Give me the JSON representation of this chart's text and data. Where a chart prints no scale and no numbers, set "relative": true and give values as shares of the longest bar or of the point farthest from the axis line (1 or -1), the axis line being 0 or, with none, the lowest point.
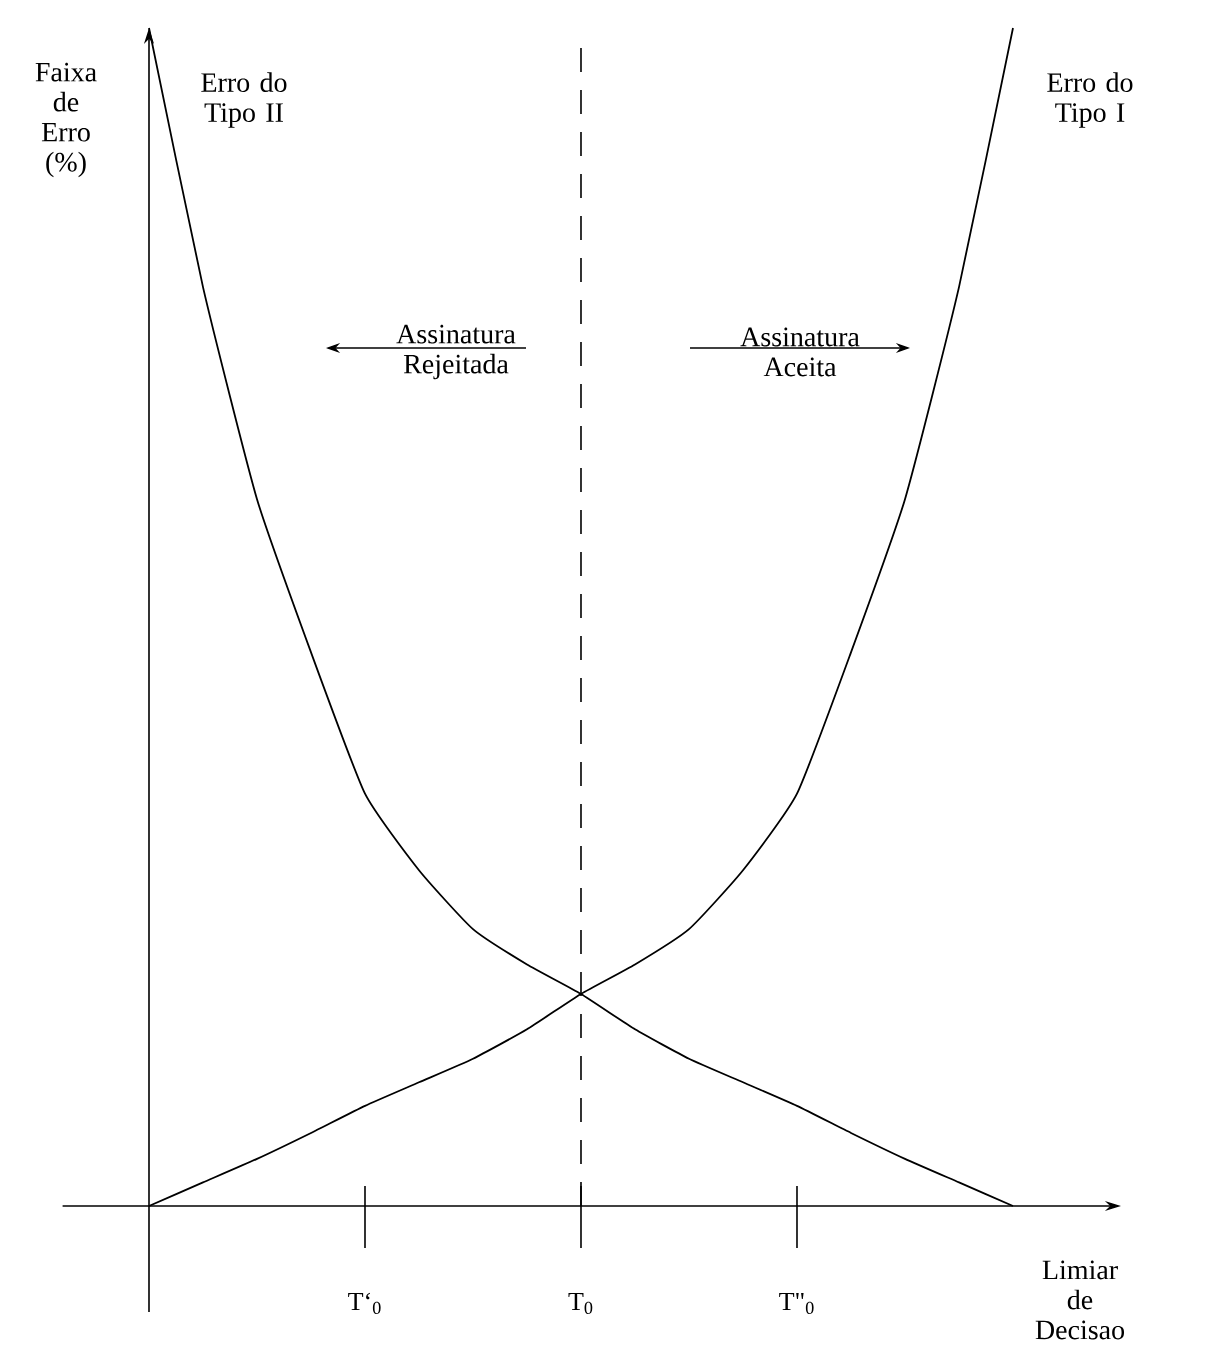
{
  "chart_data": {
    "type": "line",
    "relative": true,
    "xlabel": "Limiar de Decisao",
    "ylabel": "Faixa de Erro (%)",
    "categories": [
      null,
      null,
      null,
      null,
      "T‘$_{0}$",
      null,
      null,
      null,
      "T$_{0}$",
      null,
      null,
      null,
      "T\"$_{0}$",
      null,
      null,
      null,
      null
    ],
    "series": [
      {
        "name": "Erro do Tipo II",
        "color": "#000000",
        "values": [
          1,
          0.78,
          0.6,
          0.47,
          0.35,
          0.285,
          0.235,
          0.205,
          0.18,
          0.15,
          0.125,
          0.105,
          0.085,
          0.062,
          0.04,
          0.02,
          0
        ]
      },
      {
        "name": "Erro do Tipo I",
        "color": "#000000",
        "values": [
          0,
          0.02,
          0.04,
          0.062,
          0.085,
          0.105,
          0.125,
          0.15,
          0.18,
          0.205,
          0.235,
          0.285,
          0.35,
          0.47,
          0.6,
          0.78,
          1
        ]
      }
    ],
    "ref_lines": [
      {
        "axis": "x",
        "value": "T$_{0}$",
        "line_style": "dashed",
        "color": "#000000"
      }
    ],
    "annotations": [
      "Assinatura Rejeitada",
      "Assinatura Aceita"
    ]
  }
}
